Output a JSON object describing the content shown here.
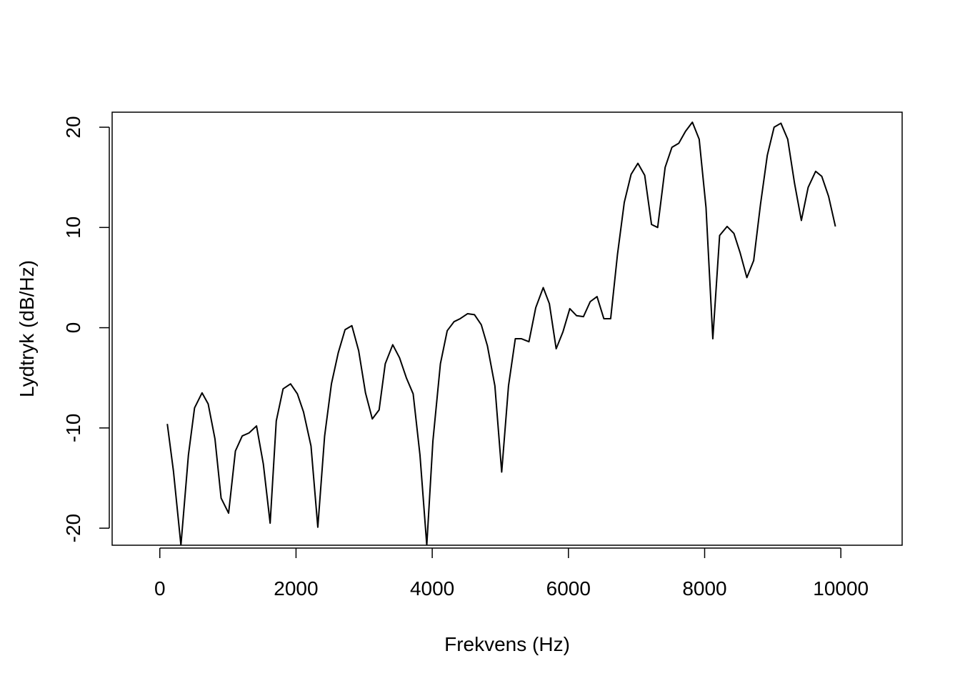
{
  "chart_data": {
    "type": "line",
    "title": "",
    "xlabel": "Frekvens (Hz)",
    "ylabel": "Lydtryk (dB/Hz)",
    "xlim": [
      -700,
      10900
    ],
    "ylim": [
      -21.7,
      21.5
    ],
    "x_ticks": [
      0,
      2000,
      4000,
      6000,
      8000,
      10000
    ],
    "x_tick_labels": [
      "0",
      "2000",
      "4000",
      "6000",
      "8000",
      "10000"
    ],
    "y_ticks": [
      -20,
      -10,
      0,
      10,
      20
    ],
    "y_tick_labels": [
      "-20",
      "-10",
      "0",
      "10",
      "20"
    ],
    "grid": false,
    "legend": "none",
    "line_color": "#000000",
    "series": [
      {
        "x": [
          110,
          200,
          310,
          420,
          510,
          620,
          710,
          810,
          900,
          1010,
          1110,
          1210,
          1310,
          1420,
          1520,
          1620,
          1710,
          1810,
          1920,
          2020,
          2110,
          2220,
          2320,
          2420,
          2520,
          2620,
          2720,
          2820,
          2920,
          3020,
          3120,
          3220,
          3310,
          3420,
          3520,
          3620,
          3720,
          3820,
          3920,
          4010,
          4120,
          4220,
          4320,
          4410,
          4520,
          4620,
          4720,
          4810,
          4920,
          5020,
          5120,
          5220,
          5310,
          5420,
          5520,
          5630,
          5720,
          5820,
          5920,
          6020,
          6120,
          6220,
          6320,
          6420,
          6520,
          6620,
          6720,
          6820,
          6920,
          7020,
          7120,
          7220,
          7310,
          7420,
          7520,
          7620,
          7720,
          7820,
          7920,
          8020,
          8120,
          8220,
          8330,
          8430,
          8520,
          8620,
          8720,
          8820,
          8920,
          9020,
          9120,
          9220,
          9320,
          9420,
          9520,
          9630,
          9720,
          9820,
          9920
        ],
        "values": [
          -9.6,
          -14.3,
          -21.7,
          -12.7,
          -8.0,
          -6.5,
          -7.6,
          -11.1,
          -17.0,
          -18.5,
          -12.3,
          -10.8,
          -10.5,
          -9.8,
          -13.6,
          -19.5,
          -9.3,
          -6.1,
          -5.6,
          -6.6,
          -8.4,
          -11.8,
          -19.9,
          -10.8,
          -5.6,
          -2.5,
          -0.2,
          0.2,
          -2.3,
          -6.5,
          -9.1,
          -8.2,
          -3.6,
          -1.7,
          -3.0,
          -5.0,
          -6.6,
          -12.7,
          -21.7,
          -11.3,
          -3.6,
          -0.3,
          0.6,
          0.9,
          1.4,
          1.3,
          0.3,
          -1.8,
          -5.8,
          -14.4,
          -5.8,
          -1.1,
          -1.1,
          -1.4,
          2.0,
          4.0,
          2.4,
          -2.1,
          -0.4,
          1.9,
          1.2,
          1.1,
          2.6,
          3.1,
          0.9,
          0.9,
          7.3,
          12.5,
          15.3,
          16.4,
          15.2,
          10.3,
          10.0,
          16.0,
          18.0,
          18.4,
          19.6,
          20.5,
          18.8,
          12.0,
          -1.1,
          9.2,
          10.1,
          9.4,
          7.5,
          5.0,
          6.7,
          12.3,
          17.2,
          20.0,
          20.4,
          18.8,
          14.4,
          10.7,
          14.0,
          15.6,
          15.1,
          13.1,
          10.1
        ]
      }
    ]
  }
}
